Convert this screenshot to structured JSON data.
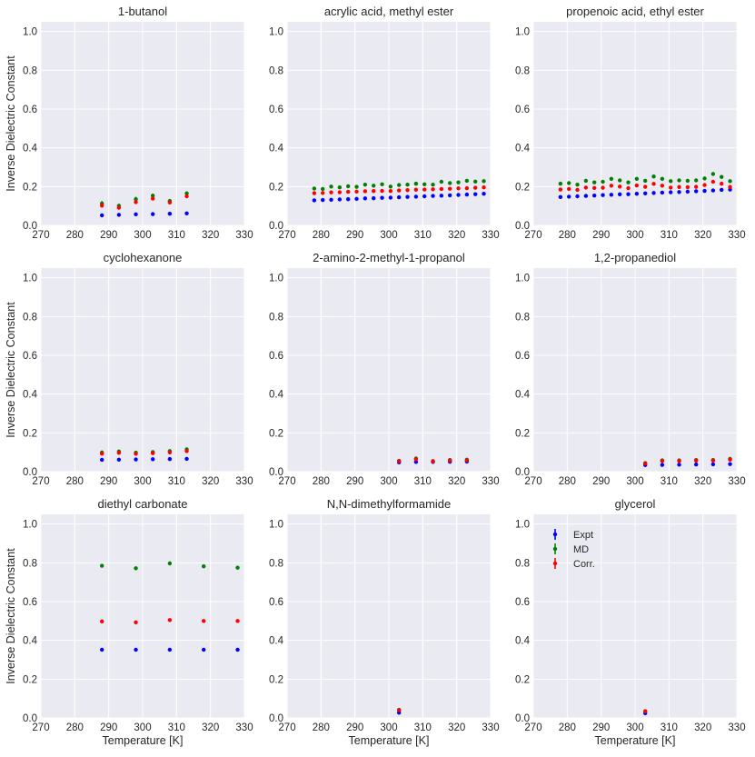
{
  "figure": {
    "ylabel": "Inverse Dielectric Constant",
    "xlabel": "Temperature [K]",
    "legend": {
      "items": [
        {
          "label": "Expt",
          "color": "#0000ff"
        },
        {
          "label": "MD",
          "color": "#008000"
        },
        {
          "label": "Corr.",
          "color": "#ff0000"
        }
      ]
    }
  },
  "chart_data": [
    {
      "type": "scatter",
      "title": "1-butanol",
      "xlim": [
        270,
        330
      ],
      "ylim": [
        0,
        1.05
      ],
      "xticks": [
        "270",
        "280",
        "290",
        "300",
        "310",
        "320",
        "330"
      ],
      "yticks": [
        "0.0",
        "0.2",
        "0.4",
        "0.6",
        "0.8",
        "1.0"
      ],
      "x": [
        288,
        293,
        298,
        303,
        308,
        313
      ],
      "series": [
        {
          "name": "Expt",
          "color": "#0000ff",
          "values": [
            0.052,
            0.054,
            0.057,
            0.058,
            0.06,
            0.062
          ],
          "err": [
            0.002,
            0.002,
            0.002,
            0.002,
            0.002,
            0.002
          ]
        },
        {
          "name": "MD",
          "color": "#008000",
          "values": [
            0.113,
            0.101,
            0.135,
            0.153,
            0.126,
            0.165
          ],
          "err": [
            0.012,
            0.01,
            0.012,
            0.01,
            0.008,
            0.01
          ]
        },
        {
          "name": "Corr.",
          "color": "#ff0000",
          "values": [
            0.102,
            0.091,
            0.12,
            0.138,
            0.118,
            0.15
          ],
          "err": [
            0.01,
            0.008,
            0.01,
            0.008,
            0.006,
            0.008
          ]
        }
      ]
    },
    {
      "type": "scatter",
      "title": "acrylic acid, methyl ester",
      "xlim": [
        270,
        330
      ],
      "ylim": [
        0,
        1.05
      ],
      "xticks": [
        "270",
        "280",
        "290",
        "300",
        "310",
        "320",
        "330"
      ],
      "yticks": [
        "0.0",
        "0.2",
        "0.4",
        "0.6",
        "0.8",
        "1.0"
      ],
      "x": [
        278,
        280.5,
        283,
        285.5,
        288,
        290.5,
        293,
        295.5,
        298,
        300.5,
        303,
        305.5,
        308,
        310.5,
        313,
        315.5,
        318,
        320.5,
        323,
        325.5,
        328
      ],
      "series": [
        {
          "name": "Expt",
          "color": "#0000ff",
          "values": [
            0.129,
            0.131,
            0.132,
            0.134,
            0.135,
            0.137,
            0.139,
            0.14,
            0.142,
            0.143,
            0.145,
            0.147,
            0.148,
            0.15,
            0.152,
            0.153,
            0.155,
            0.157,
            0.159,
            0.161,
            0.163
          ]
        },
        {
          "name": "MD",
          "color": "#008000",
          "values": [
            0.19,
            0.188,
            0.2,
            0.196,
            0.202,
            0.199,
            0.21,
            0.205,
            0.212,
            0.2,
            0.208,
            0.21,
            0.215,
            0.212,
            0.21,
            0.225,
            0.218,
            0.222,
            0.23,
            0.226,
            0.228
          ]
        },
        {
          "name": "Corr.",
          "color": "#ff0000",
          "values": [
            0.166,
            0.167,
            0.17,
            0.171,
            0.173,
            0.174,
            0.176,
            0.177,
            0.178,
            0.177,
            0.18,
            0.182,
            0.184,
            0.185,
            0.186,
            0.188,
            0.189,
            0.191,
            0.192,
            0.194,
            0.196
          ]
        }
      ]
    },
    {
      "type": "scatter",
      "title": "propenoic acid, ethyl ester",
      "xlim": [
        270,
        330
      ],
      "ylim": [
        0,
        1.05
      ],
      "xticks": [
        "270",
        "280",
        "290",
        "300",
        "310",
        "320",
        "330"
      ],
      "yticks": [
        "0.0",
        "0.2",
        "0.4",
        "0.6",
        "0.8",
        "1.0"
      ],
      "x": [
        278,
        280.5,
        283,
        285.5,
        288,
        290.5,
        293,
        295.5,
        298,
        300.5,
        303,
        305.5,
        308,
        310.5,
        313,
        315.5,
        318,
        320.5,
        323,
        325.5,
        328
      ],
      "series": [
        {
          "name": "Expt",
          "color": "#0000ff",
          "values": [
            0.146,
            0.148,
            0.15,
            0.152,
            0.154,
            0.156,
            0.158,
            0.16,
            0.161,
            0.163,
            0.165,
            0.167,
            0.169,
            0.171,
            0.172,
            0.174,
            0.176,
            0.178,
            0.18,
            0.183,
            0.185
          ]
        },
        {
          "name": "MD",
          "color": "#008000",
          "values": [
            0.215,
            0.218,
            0.21,
            0.23,
            0.222,
            0.225,
            0.24,
            0.232,
            0.222,
            0.24,
            0.23,
            0.252,
            0.24,
            0.228,
            0.232,
            0.23,
            0.232,
            0.242,
            0.265,
            0.25,
            0.228
          ]
        },
        {
          "name": "Corr.",
          "color": "#ff0000",
          "values": [
            0.185,
            0.188,
            0.183,
            0.195,
            0.193,
            0.194,
            0.205,
            0.2,
            0.192,
            0.206,
            0.199,
            0.214,
            0.205,
            0.195,
            0.198,
            0.197,
            0.199,
            0.208,
            0.225,
            0.215,
            0.198
          ]
        }
      ]
    },
    {
      "type": "scatter",
      "title": "cyclohexanone",
      "xlim": [
        270,
        330
      ],
      "ylim": [
        0,
        1.05
      ],
      "xticks": [
        "270",
        "280",
        "290",
        "300",
        "310",
        "320",
        "330"
      ],
      "yticks": [
        "0.0",
        "0.2",
        "0.4",
        "0.6",
        "0.8",
        "1.0"
      ],
      "x": [
        288,
        293,
        298,
        303,
        308,
        313
      ],
      "series": [
        {
          "name": "Expt",
          "color": "#0000ff",
          "values": [
            0.061,
            0.062,
            0.063,
            0.064,
            0.065,
            0.066
          ]
        },
        {
          "name": "MD",
          "color": "#008000",
          "values": [
            0.099,
            0.104,
            0.098,
            0.101,
            0.106,
            0.115
          ],
          "err": [
            0.008,
            0.008,
            0.008,
            0.008,
            0.008,
            0.009
          ]
        },
        {
          "name": "Corr.",
          "color": "#ff0000",
          "values": [
            0.093,
            0.097,
            0.092,
            0.095,
            0.099,
            0.106
          ],
          "err": [
            0.006,
            0.006,
            0.006,
            0.006,
            0.006,
            0.007
          ]
        }
      ]
    },
    {
      "type": "scatter",
      "title": "2-amino-2-methyl-1-propanol",
      "xlim": [
        270,
        330
      ],
      "ylim": [
        0,
        1.05
      ],
      "xticks": [
        "270",
        "280",
        "290",
        "300",
        "310",
        "320",
        "330"
      ],
      "yticks": [
        "0.0",
        "0.2",
        "0.4",
        "0.6",
        "0.8",
        "1.0"
      ],
      "x": [
        303,
        308,
        313,
        318,
        323
      ],
      "series": [
        {
          "name": "Expt",
          "color": "#0000ff",
          "values": [
            0.048,
            0.05,
            0.05,
            0.051,
            0.052
          ]
        },
        {
          "name": "MD",
          "color": "#008000",
          "values": [
            0.056,
            0.068,
            0.055,
            0.06,
            0.062
          ],
          "err": [
            0.005,
            0.005,
            0.004,
            0.004,
            0.004
          ]
        },
        {
          "name": "Corr.",
          "color": "#ff0000",
          "values": [
            0.054,
            0.064,
            0.053,
            0.057,
            0.058
          ],
          "err": [
            0.004,
            0.004,
            0.003,
            0.003,
            0.003
          ]
        }
      ]
    },
    {
      "type": "scatter",
      "title": "1,2-propanediol",
      "xlim": [
        270,
        330
      ],
      "ylim": [
        0,
        1.05
      ],
      "xticks": [
        "270",
        "280",
        "290",
        "300",
        "310",
        "320",
        "330"
      ],
      "yticks": [
        "0.0",
        "0.2",
        "0.4",
        "0.6",
        "0.8",
        "1.0"
      ],
      "x": [
        303,
        308,
        313,
        318,
        323,
        328
      ],
      "series": [
        {
          "name": "Expt",
          "color": "#0000ff",
          "values": [
            0.034,
            0.035,
            0.036,
            0.037,
            0.038,
            0.039
          ]
        },
        {
          "name": "MD",
          "color": "#008000",
          "values": [
            0.044,
            0.058,
            0.058,
            0.06,
            0.06,
            0.066
          ],
          "err": [
            0.004,
            0.004,
            0.004,
            0.004,
            0.004,
            0.004
          ]
        },
        {
          "name": "Corr.",
          "color": "#ff0000",
          "values": [
            0.042,
            0.055,
            0.055,
            0.057,
            0.057,
            0.062
          ]
        }
      ]
    },
    {
      "type": "scatter",
      "title": "diethyl carbonate",
      "xlim": [
        270,
        330
      ],
      "ylim": [
        0,
        1.05
      ],
      "xticks": [
        "270",
        "280",
        "290",
        "300",
        "310",
        "320",
        "330"
      ],
      "yticks": [
        "0.0",
        "0.2",
        "0.4",
        "0.6",
        "0.8",
        "1.0"
      ],
      "x": [
        288,
        298,
        308,
        318,
        328
      ],
      "series": [
        {
          "name": "Expt",
          "color": "#0000ff",
          "values": [
            0.352,
            0.352,
            0.352,
            0.352,
            0.352
          ]
        },
        {
          "name": "MD",
          "color": "#008000",
          "values": [
            0.785,
            0.772,
            0.797,
            0.782,
            0.775
          ],
          "err": [
            0.007,
            0.006,
            0.01,
            0.006,
            0.008
          ]
        },
        {
          "name": "Corr.",
          "color": "#ff0000",
          "values": [
            0.498,
            0.493,
            0.505,
            0.5,
            0.5
          ]
        }
      ]
    },
    {
      "type": "scatter",
      "title": "N,N-dimethylformamide",
      "xlim": [
        270,
        330
      ],
      "ylim": [
        0,
        1.05
      ],
      "xticks": [
        "270",
        "280",
        "290",
        "300",
        "310",
        "320",
        "330"
      ],
      "yticks": [
        "0.0",
        "0.2",
        "0.4",
        "0.6",
        "0.8",
        "1.0"
      ],
      "x": [
        303
      ],
      "series": [
        {
          "name": "Expt",
          "color": "#0000ff",
          "values": [
            0.027
          ]
        },
        {
          "name": "MD",
          "color": "#008000",
          "values": [
            0.042
          ],
          "err": [
            0.004
          ]
        },
        {
          "name": "Corr.",
          "color": "#ff0000",
          "values": [
            0.04
          ]
        }
      ]
    },
    {
      "type": "scatter",
      "title": "glycerol",
      "xlim": [
        270,
        330
      ],
      "ylim": [
        0,
        1.05
      ],
      "xticks": [
        "270",
        "280",
        "290",
        "300",
        "310",
        "320",
        "330"
      ],
      "yticks": [
        "0.0",
        "0.2",
        "0.4",
        "0.6",
        "0.8",
        "1.0"
      ],
      "x": [
        303
      ],
      "series": [
        {
          "name": "Expt",
          "color": "#0000ff",
          "values": [
            0.024
          ]
        },
        {
          "name": "MD",
          "color": "#008000",
          "values": [
            0.035
          ],
          "err": [
            0.003
          ]
        },
        {
          "name": "Corr.",
          "color": "#ff0000",
          "values": [
            0.034
          ]
        }
      ]
    }
  ]
}
